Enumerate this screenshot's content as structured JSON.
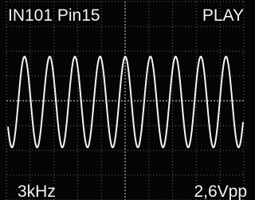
{
  "header": {
    "left": "IN101 Pin15",
    "right": "PLAY"
  },
  "footer": {
    "left": "3kHz",
    "right": "2,6Vpp"
  }
}
